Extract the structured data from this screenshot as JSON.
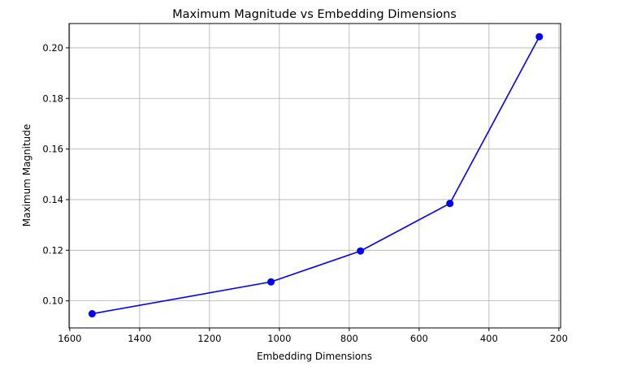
{
  "chart_data": {
    "type": "line",
    "title": "Maximum Magnitude vs Embedding Dimensions",
    "xlabel": "Embedding Dimensions",
    "ylabel": "Maximum Magnitude",
    "x": [
      1536,
      1024,
      768,
      512,
      256
    ],
    "series": [
      {
        "values": [
          0.0949,
          0.1075,
          0.1197,
          0.1385,
          0.2044
        ],
        "color": "#0000ff",
        "marker": "circle"
      }
    ],
    "xlim": [
      1602,
      195
    ],
    "ylim": [
      0.0893,
      0.2096
    ],
    "x_inverted": true,
    "xticks": [
      1600,
      1400,
      1200,
      1000,
      800,
      600,
      400,
      200
    ],
    "xtick_labels": [
      "1600",
      "1400",
      "1200",
      "1000",
      "800",
      "600",
      "400",
      "200"
    ],
    "yticks": [
      0.1,
      0.12,
      0.14,
      0.16,
      0.18,
      0.2
    ],
    "ytick_labels": [
      "0.10",
      "0.12",
      "0.14",
      "0.16",
      "0.18",
      "0.20"
    ],
    "grid": true
  }
}
